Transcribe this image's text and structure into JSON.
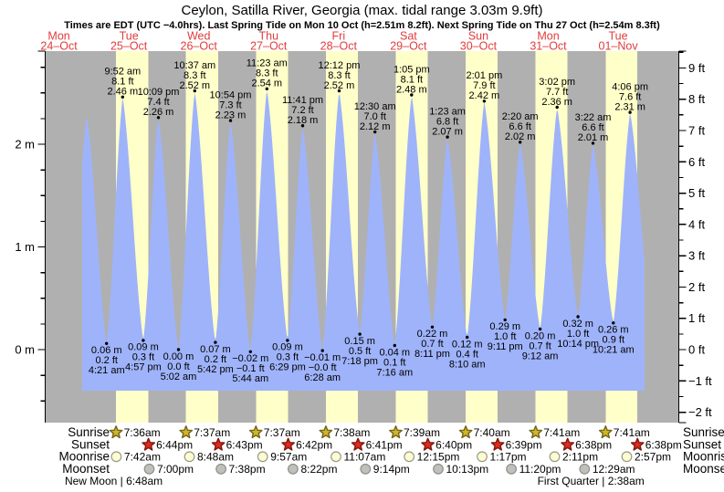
{
  "title": "Ceylon, Satilla River, Georgia (max. tidal range 3.03m 9.9ft)",
  "subtitle": "Times are EDT (UTC −4.0hrs). Last Spring Tide on Mon 10 Oct (h=2.51m 8.2ft). Next Spring Tide on Thu 27 Oct (h=2.54m 8.3ft)",
  "days": [
    {
      "dow": "Mon",
      "date": "24–Oct"
    },
    {
      "dow": "Tue",
      "date": "25–Oct"
    },
    {
      "dow": "Wed",
      "date": "26–Oct"
    },
    {
      "dow": "Thu",
      "date": "27–Oct"
    },
    {
      "dow": "Fri",
      "date": "28–Oct"
    },
    {
      "dow": "Sat",
      "date": "29–Oct"
    },
    {
      "dow": "Sun",
      "date": "30–Oct"
    },
    {
      "dow": "Mon",
      "date": "31–Oct"
    },
    {
      "dow": "Tue",
      "date": "01–Nov"
    }
  ],
  "y_axis": {
    "left": [
      {
        "v": 2,
        "label": "2 m"
      },
      {
        "v": 1,
        "label": "1 m"
      },
      {
        "v": 0,
        "label": "0 m"
      }
    ],
    "right": [
      {
        "ft": 9,
        "label": "9 ft"
      },
      {
        "ft": 8,
        "label": "8 ft"
      },
      {
        "ft": 7,
        "label": "7 ft"
      },
      {
        "ft": 6,
        "label": "6 ft"
      },
      {
        "ft": 5,
        "label": "5 ft"
      },
      {
        "ft": 4,
        "label": "4 ft"
      },
      {
        "ft": 3,
        "label": "3 ft"
      },
      {
        "ft": 2,
        "label": "2 ft"
      },
      {
        "ft": 1,
        "label": "1 ft"
      },
      {
        "ft": 0,
        "label": "0 ft"
      },
      {
        "ft": -1,
        "label": "−1 ft"
      },
      {
        "ft": -2,
        "label": "−2 ft"
      }
    ]
  },
  "chart_data": {
    "type": "area",
    "x_unit": "hours since Mon 24-Oct 00:00 EDT",
    "y_unit_left": "m",
    "y_unit_right": "ft",
    "extremes": [
      {
        "t": 15.2,
        "v": 0.05,
        "hidden": true
      },
      {
        "t": 21.6,
        "v": 2.28,
        "hidden": true
      },
      {
        "day": 1,
        "time": "4:21 am",
        "v": 0.06,
        "m": "0.06 m",
        "ft": "0.2 ft",
        "type": "low"
      },
      {
        "day": 1,
        "time": "9:52 am",
        "v": 2.46,
        "m": "2.46 m",
        "ft": "8.1 ft",
        "type": "high"
      },
      {
        "day": 1,
        "time": "4:57 pm",
        "v": 0.09,
        "m": "0.09 m",
        "ft": "0.3 ft",
        "type": "low"
      },
      {
        "day": 1,
        "time": "10:09 pm",
        "v": 2.26,
        "m": "2.26 m",
        "ft": "7.4 ft",
        "type": "high"
      },
      {
        "day": 2,
        "time": "5:02 am",
        "v": 0.0,
        "m": "0.00 m",
        "ft": "0.0 ft",
        "type": "low"
      },
      {
        "day": 2,
        "time": "10:37 am",
        "v": 2.52,
        "m": "2.52 m",
        "ft": "8.3 ft",
        "type": "high"
      },
      {
        "day": 2,
        "time": "5:42 pm",
        "v": 0.07,
        "m": "0.07 m",
        "ft": "0.2 ft",
        "type": "low"
      },
      {
        "day": 2,
        "time": "10:54 pm",
        "v": 2.23,
        "m": "2.23 m",
        "ft": "7.3 ft",
        "type": "high"
      },
      {
        "day": 3,
        "time": "5:44 am",
        "v": -0.02,
        "m": "−0.02 m",
        "ft": "−0.1 ft",
        "type": "low"
      },
      {
        "day": 3,
        "time": "11:23 am",
        "v": 2.54,
        "m": "2.54 m",
        "ft": "8.3 ft",
        "type": "high"
      },
      {
        "day": 3,
        "time": "6:29 pm",
        "v": 0.09,
        "m": "0.09 m",
        "ft": "0.3 ft",
        "type": "low"
      },
      {
        "day": 3,
        "time": "11:41 pm",
        "v": 2.18,
        "m": "2.18 m",
        "ft": "7.2 ft",
        "type": "high"
      },
      {
        "day": 4,
        "time": "6:28 am",
        "v": -0.01,
        "m": "−0.01 m",
        "ft": "−0.0 ft",
        "type": "low"
      },
      {
        "day": 4,
        "time": "12:12 pm",
        "v": 2.52,
        "m": "2.52 m",
        "ft": "8.3 ft",
        "type": "high"
      },
      {
        "day": 4,
        "time": "7:18 pm",
        "v": 0.15,
        "m": "0.15 m",
        "ft": "0.5 ft",
        "type": "low"
      },
      {
        "day": 5,
        "time": "12:30 am",
        "v": 2.12,
        "m": "2.12 m",
        "ft": "7.0 ft",
        "type": "high"
      },
      {
        "day": 5,
        "time": "7:16 am",
        "v": 0.04,
        "m": "0.04 m",
        "ft": "0.1 ft",
        "type": "low"
      },
      {
        "day": 5,
        "time": "1:05 pm",
        "v": 2.48,
        "m": "2.48 m",
        "ft": "8.1 ft",
        "type": "high"
      },
      {
        "day": 5,
        "time": "8:11 pm",
        "v": 0.22,
        "m": "0.22 m",
        "ft": "0.7 ft",
        "type": "low"
      },
      {
        "day": 6,
        "time": "1:23 am",
        "v": 2.07,
        "m": "2.07 m",
        "ft": "6.8 ft",
        "type": "high"
      },
      {
        "day": 6,
        "time": "8:10 am",
        "v": 0.12,
        "m": "0.12 m",
        "ft": "0.4 ft",
        "type": "low"
      },
      {
        "day": 6,
        "time": "2:01 pm",
        "v": 2.42,
        "m": "2.42 m",
        "ft": "7.9 ft",
        "type": "high"
      },
      {
        "day": 6,
        "time": "9:11 pm",
        "v": 0.29,
        "m": "0.29 m",
        "ft": "1.0 ft",
        "type": "low"
      },
      {
        "day": 7,
        "time": "2:20 am",
        "v": 2.02,
        "m": "2.02 m",
        "ft": "6.6 ft",
        "type": "high"
      },
      {
        "day": 7,
        "time": "9:12 am",
        "v": 0.2,
        "m": "0.20 m",
        "ft": "0.7 ft",
        "type": "low"
      },
      {
        "day": 7,
        "time": "3:02 pm",
        "v": 2.36,
        "m": "2.36 m",
        "ft": "7.7 ft",
        "type": "high"
      },
      {
        "day": 7,
        "time": "10:14 pm",
        "v": 0.32,
        "m": "0.32 m",
        "ft": "1.0 ft",
        "type": "low"
      },
      {
        "day": 8,
        "time": "3:22 am",
        "v": 2.01,
        "m": "2.01 m",
        "ft": "6.6 ft",
        "type": "high"
      },
      {
        "day": 8,
        "time": "10:21 am",
        "v": 0.26,
        "m": "0.26 m",
        "ft": "0.9 ft",
        "type": "low"
      },
      {
        "day": 8,
        "time": "4:06 pm",
        "v": 2.31,
        "m": "2.31 m",
        "ft": "7.6 ft",
        "type": "high"
      },
      {
        "t": 215.4,
        "v": 0.28,
        "hidden": true
      }
    ]
  },
  "astro": {
    "row_labels": [
      "Sunrise",
      "Sunset",
      "Moonrise",
      "Moonset"
    ],
    "sunrise": [
      {
        "day": 1,
        "time": "7:36am"
      },
      {
        "day": 2,
        "time": "7:37am"
      },
      {
        "day": 3,
        "time": "7:37am"
      },
      {
        "day": 4,
        "time": "7:38am"
      },
      {
        "day": 5,
        "time": "7:39am"
      },
      {
        "day": 6,
        "time": "7:40am"
      },
      {
        "day": 7,
        "time": "7:41am"
      },
      {
        "day": 8,
        "time": "7:41am"
      }
    ],
    "sunset": [
      {
        "day": 1,
        "time": "6:44pm"
      },
      {
        "day": 2,
        "time": "6:43pm"
      },
      {
        "day": 3,
        "time": "6:42pm"
      },
      {
        "day": 4,
        "time": "6:41pm"
      },
      {
        "day": 5,
        "time": "6:40pm"
      },
      {
        "day": 6,
        "time": "6:39pm"
      },
      {
        "day": 7,
        "time": "6:38pm"
      },
      {
        "day": 8,
        "time": "6:38pm"
      }
    ],
    "moonrise": [
      {
        "day": 1,
        "time": "7:42am"
      },
      {
        "day": 2,
        "time": "8:48am"
      },
      {
        "day": 3,
        "time": "9:57am"
      },
      {
        "day": 4,
        "time": "11:07am"
      },
      {
        "day": 5,
        "time": "12:15pm"
      },
      {
        "day": 6,
        "time": "1:17pm"
      },
      {
        "day": 7,
        "time": "2:11pm"
      },
      {
        "day": 8,
        "time": "2:57pm"
      }
    ],
    "moonset": [
      {
        "day": 1,
        "time": "7:00pm"
      },
      {
        "day": 2,
        "time": "7:38pm"
      },
      {
        "day": 3,
        "time": "8:22pm"
      },
      {
        "day": 4,
        "time": "9:14pm"
      },
      {
        "day": 5,
        "time": "10:13pm"
      },
      {
        "day": 6,
        "time": "11:20pm"
      },
      {
        "day": 8,
        "time": "12:29am"
      }
    ],
    "phases": [
      {
        "label": "New Moon",
        "time": "6:48am",
        "day": 1
      },
      {
        "label": "First Quarter",
        "time": "2:38am",
        "day": 8
      }
    ]
  },
  "colors": {
    "night_band": "#b0b0b0",
    "day_band": "#ffffc9",
    "tide_fill": "#9fb3fa",
    "day_label": "#e03c3c",
    "sunrise_star": "#d2b32a",
    "sunrise_star_stroke": "#6e6716",
    "sunset_star": "#df2b1d",
    "sunset_star_stroke": "#7e150e",
    "moonrise_fill": "#fdfdd4",
    "moonrise_stroke": "#9a9a84",
    "moonset_fill": "#c0c0ba",
    "moonset_stroke": "#8f8f8f",
    "axis": "#000000"
  }
}
